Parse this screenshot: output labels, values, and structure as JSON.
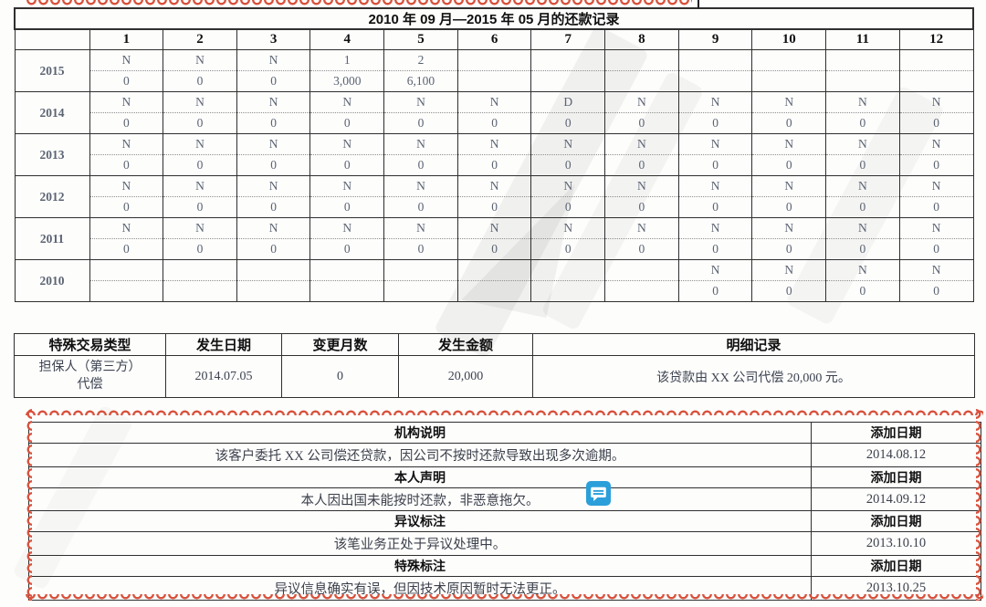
{
  "title": "2010 年 09 月—2015 年 05 月的还款记录",
  "repayment_table": {
    "month_headers": [
      "1",
      "2",
      "3",
      "4",
      "5",
      "6",
      "7",
      "8",
      "9",
      "10",
      "11",
      "12"
    ],
    "rows": [
      {
        "year": "2015",
        "status": [
          "N",
          "N",
          "N",
          "1",
          "2",
          "",
          "",
          "",
          "",
          "",
          "",
          ""
        ],
        "amounts": [
          "0",
          "0",
          "0",
          "3,000",
          "6,100",
          "",
          "",
          "",
          "",
          "",
          "",
          ""
        ]
      },
      {
        "year": "2014",
        "status": [
          "N",
          "N",
          "N",
          "N",
          "N",
          "N",
          "D",
          "N",
          "N",
          "N",
          "N",
          "N"
        ],
        "amounts": [
          "0",
          "0",
          "0",
          "0",
          "0",
          "0",
          "0",
          "0",
          "0",
          "0",
          "0",
          "0"
        ]
      },
      {
        "year": "2013",
        "status": [
          "N",
          "N",
          "N",
          "N",
          "N",
          "N",
          "N",
          "N",
          "N",
          "N",
          "N",
          "N"
        ],
        "amounts": [
          "0",
          "0",
          "0",
          "0",
          "0",
          "0",
          "0",
          "0",
          "0",
          "0",
          "0",
          "0"
        ]
      },
      {
        "year": "2012",
        "status": [
          "N",
          "N",
          "N",
          "N",
          "N",
          "N",
          "N",
          "N",
          "N",
          "N",
          "N",
          "N"
        ],
        "amounts": [
          "0",
          "0",
          "0",
          "0",
          "0",
          "0",
          "0",
          "0",
          "0",
          "0",
          "0",
          "0"
        ]
      },
      {
        "year": "2011",
        "status": [
          "N",
          "N",
          "N",
          "N",
          "N",
          "N",
          "N",
          "N",
          "N",
          "N",
          "N",
          "N"
        ],
        "amounts": [
          "0",
          "0",
          "0",
          "0",
          "0",
          "0",
          "0",
          "0",
          "0",
          "0",
          "0",
          "0"
        ]
      },
      {
        "year": "2010",
        "status": [
          "",
          "",
          "",
          "",
          "",
          "",
          "",
          "",
          "N",
          "N",
          "N",
          "N"
        ],
        "amounts": [
          "",
          "",
          "",
          "",
          "",
          "",
          "",
          "",
          "0",
          "0",
          "0",
          "0"
        ]
      }
    ]
  },
  "special_transactions": {
    "headers": [
      "特殊交易类型",
      "发生日期",
      "变更月数",
      "发生金额",
      "明细记录"
    ],
    "rows": [
      {
        "type": "担保人（第三方）代偿",
        "date": "2014.07.05",
        "change_months": "0",
        "amount": "20,000",
        "detail": "该贷款由 XX 公司代偿 20,000 元。"
      }
    ]
  },
  "annotations": {
    "date_header": "添加日期",
    "sections": [
      {
        "title": "机构说明",
        "content": "该客户委托 XX 公司偿还贷款，因公司不按时还款导致出现多次逾期。",
        "date": "2014.08.12"
      },
      {
        "title": "本人声明",
        "content": "本人因出国未能按时还款，非恶意拖欠。",
        "date": "2014.09.12"
      },
      {
        "title": "异议标注",
        "content": "该笔业务正处于异议处理中。",
        "date": "2013.10.10"
      },
      {
        "title": "特殊标注",
        "content": "异议信息确实有误，但因技术原因暂时无法更正。",
        "date": "2013.10.25"
      }
    ]
  },
  "icons": {
    "comment_bubble": "comment-annotation-icon"
  },
  "colors": {
    "annotation_red": "#d9513c",
    "comment_blue": "#2b9fd9",
    "cell_value_gray": "#5b6372",
    "amount_blue": "#44517c",
    "border_dark": "#2f2f2f"
  }
}
